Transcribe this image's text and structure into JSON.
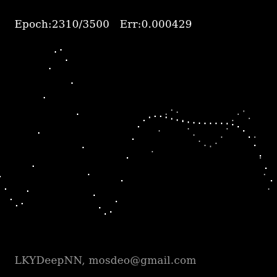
{
  "header": {
    "epoch_text": "Epoch:2310/3500",
    "error_text": "Err:0.000429"
  },
  "footer": {
    "credit": "LKYDeepNN, mosdeo@gmail.com"
  },
  "colors": {
    "background": "#000000",
    "prediction": "#ffffff",
    "target": "#8c8c8c",
    "text": "#ffffff",
    "credit": "#9a9a9a"
  },
  "chart_data": {
    "type": "scatter",
    "title": "",
    "xlabel": "",
    "ylabel": "",
    "xlim": [
      0,
      1
    ],
    "ylim": [
      0,
      1
    ],
    "grid": false,
    "series": [
      {
        "role": "target",
        "color": "#8c8c8c",
        "marker_size": 2,
        "x": [
          0.55,
          0.575,
          0.6,
          0.62,
          0.64,
          0.66,
          0.68,
          0.7,
          0.72,
          0.74,
          0.76,
          0.78,
          0.8,
          0.82,
          0.84,
          0.86,
          0.88,
          0.9,
          0.92,
          0.94,
          0.955,
          0.97
        ],
        "y": [
          0.42,
          0.52,
          0.6,
          0.62,
          0.61,
          0.57,
          0.53,
          0.5,
          0.47,
          0.45,
          0.445,
          0.46,
          0.49,
          0.53,
          0.57,
          0.6,
          0.615,
          0.58,
          0.49,
          0.39,
          0.31,
          0.24
        ]
      },
      {
        "role": "prediction",
        "color": "#ffffff",
        "marker_size": 2,
        "x": [
          0.0,
          0.02,
          0.04,
          0.06,
          0.08,
          0.1,
          0.12,
          0.14,
          0.16,
          0.18,
          0.2,
          0.22,
          0.24,
          0.26,
          0.28,
          0.3,
          0.32,
          0.34,
          0.36,
          0.38,
          0.4,
          0.42,
          0.44,
          0.46,
          0.48,
          0.5,
          0.52,
          0.54,
          0.56,
          0.58,
          0.6,
          0.62,
          0.64,
          0.66,
          0.68,
          0.7,
          0.72,
          0.74,
          0.76,
          0.78,
          0.8,
          0.82,
          0.84,
          0.86,
          0.88,
          0.9,
          0.92,
          0.94,
          0.96,
          0.98
        ],
        "y": [
          0.3,
          0.24,
          0.19,
          0.16,
          0.17,
          0.23,
          0.35,
          0.51,
          0.68,
          0.82,
          0.9,
          0.91,
          0.86,
          0.75,
          0.6,
          0.44,
          0.31,
          0.21,
          0.15,
          0.12,
          0.13,
          0.18,
          0.28,
          0.39,
          0.48,
          0.54,
          0.57,
          0.585,
          0.59,
          0.59,
          0.585,
          0.578,
          0.572,
          0.566,
          0.562,
          0.559,
          0.557,
          0.556,
          0.556,
          0.556,
          0.556,
          0.555,
          0.55,
          0.54,
          0.52,
          0.49,
          0.45,
          0.4,
          0.34,
          0.28
        ]
      }
    ]
  }
}
